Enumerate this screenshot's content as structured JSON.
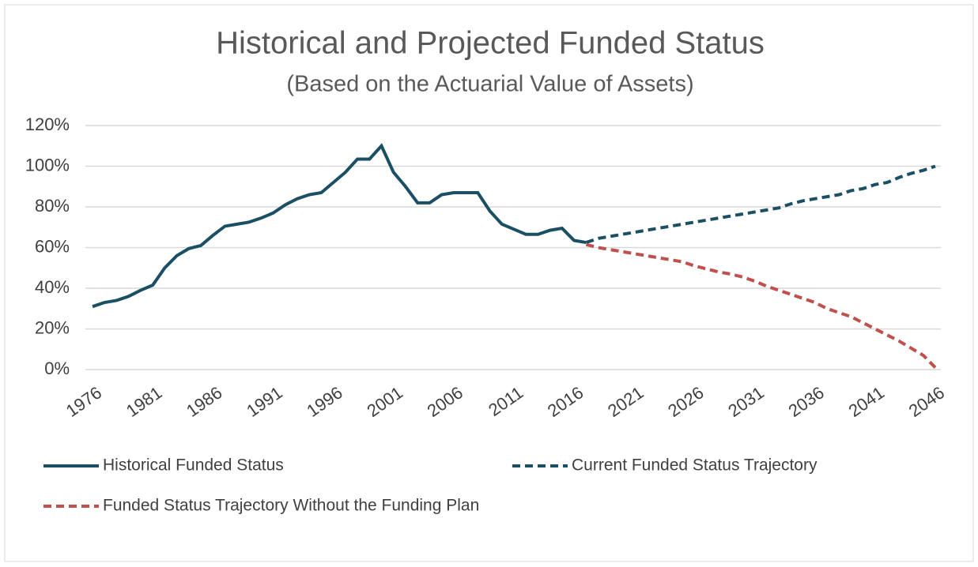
{
  "chart_data": {
    "type": "line",
    "title": "Historical and Projected Funded Status",
    "subtitle": "(Based on the Actuarial Value of Assets)",
    "x": [
      1976,
      1977,
      1978,
      1979,
      1980,
      1981,
      1982,
      1983,
      1984,
      1985,
      1986,
      1987,
      1988,
      1989,
      1990,
      1991,
      1992,
      1993,
      1994,
      1995,
      1996,
      1997,
      1998,
      1999,
      2000,
      2001,
      2002,
      2003,
      2004,
      2005,
      2006,
      2007,
      2008,
      2009,
      2010,
      2011,
      2012,
      2013,
      2014,
      2015,
      2016,
      2017,
      2018,
      2019,
      2020,
      2021,
      2022,
      2023,
      2024,
      2025,
      2026,
      2027,
      2028,
      2029,
      2030,
      2031,
      2032,
      2033,
      2034,
      2035,
      2036,
      2037,
      2038,
      2039,
      2040,
      2041,
      2042,
      2043,
      2044,
      2045,
      2046
    ],
    "series": [
      {
        "name": "Historical Funded Status",
        "color": "#1b5064",
        "dash": false,
        "values": [
          31,
          33,
          34,
          36,
          39,
          41.5,
          50,
          56,
          59.5,
          61,
          66,
          70.5,
          71.5,
          72.5,
          74.5,
          77,
          81,
          84,
          86,
          87,
          92,
          97,
          103.5,
          103.5,
          110,
          97,
          90,
          82,
          82,
          86,
          87,
          87,
          87,
          78,
          71.5,
          69,
          66.5,
          66.5,
          68.5,
          69.5,
          63.5,
          62.5,
          null,
          null,
          null,
          null,
          null,
          null,
          null,
          null,
          null,
          null,
          null,
          null,
          null,
          null,
          null,
          null,
          null,
          null,
          null,
          null,
          null,
          null,
          null,
          null,
          null,
          null,
          null,
          null,
          null
        ]
      },
      {
        "name": "Current Funded Status Trajectory",
        "color": "#1b5064",
        "dash": true,
        "values": [
          null,
          null,
          null,
          null,
          null,
          null,
          null,
          null,
          null,
          null,
          null,
          null,
          null,
          null,
          null,
          null,
          null,
          null,
          null,
          null,
          null,
          null,
          null,
          null,
          null,
          null,
          null,
          null,
          null,
          null,
          null,
          null,
          null,
          null,
          null,
          null,
          null,
          null,
          null,
          null,
          null,
          62.5,
          64.5,
          65.5,
          66.5,
          67.5,
          68.5,
          69.5,
          70.5,
          71.5,
          72.5,
          73.5,
          74.5,
          75.5,
          76.5,
          77.5,
          78.5,
          79.5,
          81.5,
          83,
          84,
          85,
          86,
          88,
          89,
          91,
          92,
          94.5,
          96.5,
          98,
          100
        ]
      },
      {
        "name": "Funded Status Trajectory Without the Funding Plan",
        "color": "#c0504d",
        "dash": true,
        "values": [
          null,
          null,
          null,
          null,
          null,
          null,
          null,
          null,
          null,
          null,
          null,
          null,
          null,
          null,
          null,
          null,
          null,
          null,
          null,
          null,
          null,
          null,
          null,
          null,
          null,
          null,
          null,
          null,
          null,
          null,
          null,
          null,
          null,
          null,
          null,
          null,
          null,
          null,
          null,
          null,
          null,
          61.5,
          60,
          59,
          58,
          57,
          56,
          55,
          54,
          53,
          51,
          49.5,
          48,
          47,
          45.5,
          43.5,
          41,
          39,
          37,
          35,
          33,
          30,
          28,
          26,
          23,
          20,
          17,
          14,
          10.5,
          7,
          1
        ]
      }
    ],
    "xlim": [
      1976,
      2046
    ],
    "xticks": [
      1976,
      1981,
      1986,
      1991,
      1996,
      2001,
      2006,
      2011,
      2016,
      2021,
      2026,
      2031,
      2036,
      2041,
      2046
    ],
    "ylim": [
      0,
      120
    ],
    "yticks": [
      {
        "value": 0,
        "label": "0%"
      },
      {
        "value": 20,
        "label": "20%"
      },
      {
        "value": 40,
        "label": "40%"
      },
      {
        "value": 60,
        "label": "60%"
      },
      {
        "value": 80,
        "label": "80%"
      },
      {
        "value": 100,
        "label": "100%"
      },
      {
        "value": 120,
        "label": "120%"
      }
    ],
    "grid": true,
    "legend": "bottom"
  }
}
